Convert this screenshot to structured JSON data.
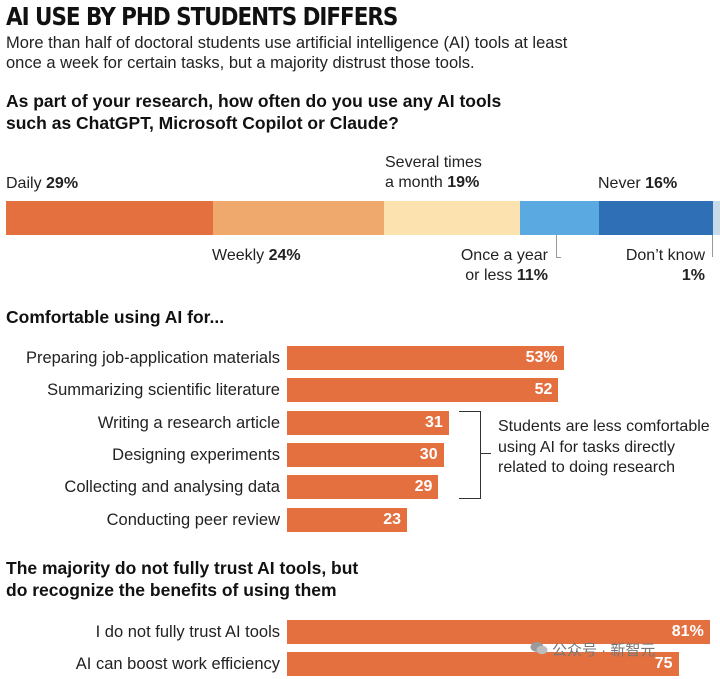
{
  "title": "AI USE BY PHD STUDENTS DIFFERS",
  "subtitle": "More than half of doctoral students use artificial intelligence (AI) tools at least once a week for certain tasks, but a majority distrust those tools.",
  "watermark": "公众号 · 新智元",
  "chart_data": [
    {
      "type": "bar",
      "stacked": true,
      "title": "As part of your research, how often do you use any AI tools such as ChatGPT, Microsoft Copilot or Claude?",
      "unit": "%",
      "colors": [
        "#e46f3f",
        "#f0a96d",
        "#fbe2ae",
        "#5aa9e0",
        "#2f6fb5",
        "#c9dbe9"
      ],
      "series": [
        {
          "name": "Daily",
          "value": 29,
          "label_name": "Daily",
          "label_value": "29%"
        },
        {
          "name": "Weekly",
          "value": 24,
          "label_name": "Weekly",
          "label_value": "24%"
        },
        {
          "name": "Several times a month",
          "value": 19,
          "label_name_1": "Several times",
          "label_name_2": "a month",
          "label_value": "19%"
        },
        {
          "name": "Once a year or less",
          "value": 11,
          "label_name_1": "Once a year",
          "label_name_2": "or less",
          "label_value": "11%"
        },
        {
          "name": "Never",
          "value": 16,
          "label_name": "Never",
          "label_value": "16%"
        },
        {
          "name": "Don't know",
          "value": 1,
          "label_name": "Don’t know",
          "label_value": "1%"
        }
      ]
    },
    {
      "type": "bar",
      "orientation": "horizontal",
      "title": "Comfortable using AI for...",
      "unit": "%",
      "xlim": [
        0,
        100
      ],
      "categories": [
        "Preparing job-application materials",
        "Summarizing scientific literature",
        "Writing a research article",
        "Designing experiments",
        "Collecting and analysing data",
        "Conducting peer review"
      ],
      "values": [
        53,
        52,
        31,
        30,
        29,
        23
      ],
      "value_labels": [
        "53%",
        "52",
        "31",
        "30",
        "29",
        "23"
      ],
      "annotation": "Students are less comfortable using AI for tasks directly related to doing research",
      "color": "#e46f3f"
    },
    {
      "type": "bar",
      "orientation": "horizontal",
      "title_line1": "The majority do not fully trust AI tools, but",
      "title_line2": "do recognize the benefits of using them",
      "unit": "%",
      "xlim": [
        0,
        100
      ],
      "categories": [
        "I do not fully trust AI tools",
        "AI can boost work efficiency"
      ],
      "values": [
        81,
        75
      ],
      "value_labels": [
        "81%",
        "75"
      ],
      "color": "#e46f3f"
    }
  ]
}
